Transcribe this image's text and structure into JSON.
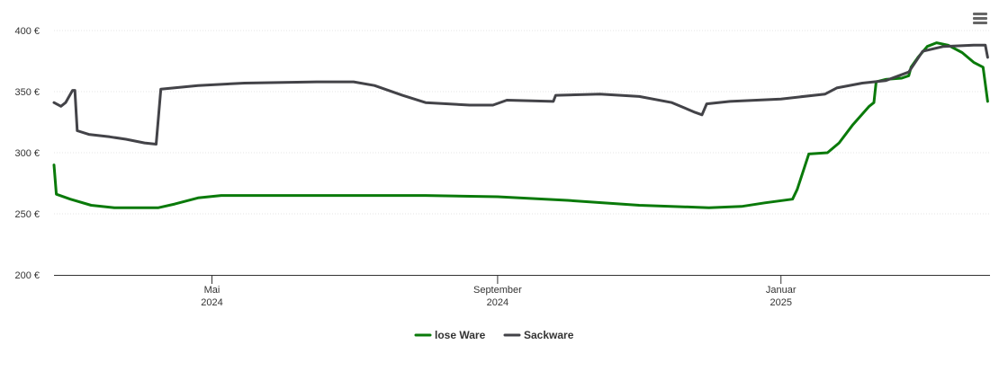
{
  "chart_data": {
    "type": "line",
    "title": "",
    "xlabel": "",
    "ylabel": "",
    "y_axis": {
      "ticks": [
        200,
        250,
        300,
        350,
        400
      ],
      "tick_labels": [
        "200 €",
        "250 €",
        "300 €",
        "350 €",
        "400 €"
      ],
      "ylim": [
        200,
        400
      ]
    },
    "x_axis": {
      "range": [
        "2024-02-23",
        "2025-04-01"
      ],
      "ticks": [
        {
          "date": "2024-05-01",
          "label_line1": "Mai",
          "label_line2": "2024"
        },
        {
          "date": "2024-09-01",
          "label_line1": "September",
          "label_line2": "2024"
        },
        {
          "date": "2025-01-01",
          "label_line1": "Januar",
          "label_line2": "2025"
        }
      ]
    },
    "grid": "horizontal dotted",
    "legend_position": "bottom-center",
    "series": [
      {
        "name": "lose Ware",
        "color": "#0a7a0a",
        "points": [
          [
            "2024-02-23",
            290
          ],
          [
            "2024-02-24",
            266
          ],
          [
            "2024-03-01",
            262
          ],
          [
            "2024-03-10",
            257
          ],
          [
            "2024-03-20",
            255
          ],
          [
            "2024-04-08",
            255
          ],
          [
            "2024-04-15",
            258
          ],
          [
            "2024-04-25",
            263
          ],
          [
            "2024-05-05",
            265
          ],
          [
            "2024-06-01",
            265
          ],
          [
            "2024-07-01",
            265
          ],
          [
            "2024-08-01",
            265
          ],
          [
            "2024-09-01",
            264
          ],
          [
            "2024-10-01",
            261
          ],
          [
            "2024-11-01",
            257
          ],
          [
            "2024-12-01",
            255
          ],
          [
            "2024-12-15",
            256
          ],
          [
            "2024-12-25",
            259
          ],
          [
            "2025-01-06",
            262
          ],
          [
            "2025-01-08",
            270
          ],
          [
            "2025-01-13",
            299
          ],
          [
            "2025-01-21",
            300
          ],
          [
            "2025-01-26",
            308
          ],
          [
            "2025-02-01",
            323
          ],
          [
            "2025-02-08",
            338
          ],
          [
            "2025-02-10",
            341
          ],
          [
            "2025-02-11",
            358
          ],
          [
            "2025-02-15",
            360
          ],
          [
            "2025-02-22",
            361
          ],
          [
            "2025-02-25",
            363
          ],
          [
            "2025-02-26",
            370
          ],
          [
            "2025-03-01",
            378
          ],
          [
            "2025-03-05",
            387
          ],
          [
            "2025-03-09",
            390
          ],
          [
            "2025-03-14",
            388
          ],
          [
            "2025-03-20",
            382
          ],
          [
            "2025-03-25",
            374
          ],
          [
            "2025-03-29",
            370
          ],
          [
            "2025-03-31",
            342
          ]
        ]
      },
      {
        "name": "Sackware",
        "color": "#434348",
        "points": [
          [
            "2024-02-23",
            341
          ],
          [
            "2024-02-26",
            338
          ],
          [
            "2024-02-28",
            341
          ],
          [
            "2024-03-02",
            351
          ],
          [
            "2024-03-03",
            351
          ],
          [
            "2024-03-04",
            318
          ],
          [
            "2024-03-09",
            315
          ],
          [
            "2024-03-18",
            313
          ],
          [
            "2024-03-25",
            311
          ],
          [
            "2024-04-02",
            308
          ],
          [
            "2024-04-07",
            307
          ],
          [
            "2024-04-09",
            352
          ],
          [
            "2024-04-25",
            355
          ],
          [
            "2024-05-15",
            357
          ],
          [
            "2024-06-15",
            358
          ],
          [
            "2024-07-01",
            358
          ],
          [
            "2024-07-10",
            355
          ],
          [
            "2024-07-22",
            347
          ],
          [
            "2024-08-01",
            341
          ],
          [
            "2024-08-20",
            339
          ],
          [
            "2024-08-30",
            339
          ],
          [
            "2024-09-05",
            343
          ],
          [
            "2024-09-25",
            342
          ],
          [
            "2024-09-26",
            347
          ],
          [
            "2024-10-15",
            348
          ],
          [
            "2024-11-01",
            346
          ],
          [
            "2024-11-15",
            341
          ],
          [
            "2024-11-25",
            333
          ],
          [
            "2024-11-28",
            331
          ],
          [
            "2024-11-30",
            340
          ],
          [
            "2024-12-10",
            342
          ],
          [
            "2025-01-01",
            344
          ],
          [
            "2025-01-20",
            348
          ],
          [
            "2025-01-25",
            353
          ],
          [
            "2025-02-05",
            357
          ],
          [
            "2025-02-15",
            359
          ],
          [
            "2025-02-25",
            366
          ],
          [
            "2025-03-03",
            383
          ],
          [
            "2025-03-12",
            387
          ],
          [
            "2025-03-25",
            388
          ],
          [
            "2025-03-30",
            388
          ],
          [
            "2025-03-31",
            378
          ]
        ]
      }
    ]
  },
  "menu": {
    "icon": "hamburger-menu-icon"
  }
}
